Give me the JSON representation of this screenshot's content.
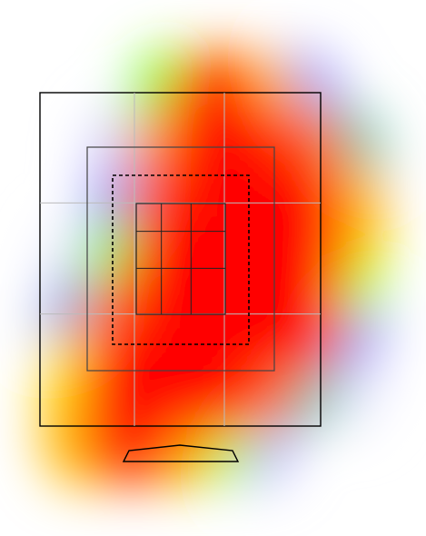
{
  "chart_data": {
    "type": "heatmap",
    "title": "",
    "xlabel": "",
    "ylabel": "",
    "grid": true,
    "legend": "none",
    "colors": {
      "scale": [
        "#ffffff",
        "#c4c4ff",
        "#9b9bff",
        "#40ff40",
        "#ffff00",
        "#ff7a00",
        "#ff0000"
      ],
      "outer_zone_line": "#000000",
      "strike_zone_line": "#000000",
      "grid_line": "#bbbbbb"
    },
    "x": [
      -1,
      -0.67,
      -0.33,
      0,
      0.33,
      0.67,
      1
    ],
    "y": [
      -1,
      -0.67,
      -0.33,
      0,
      0.33,
      0.67,
      1
    ],
    "z": [
      [
        0.0,
        0.0,
        0.55,
        0.95,
        0.75,
        0.3,
        0.0
      ],
      [
        0.0,
        0.1,
        0.8,
        1.0,
        0.95,
        0.85,
        0.4
      ],
      [
        0.0,
        0.3,
        0.9,
        1.0,
        1.0,
        1.0,
        0.75
      ],
      [
        0.05,
        0.55,
        1.0,
        1.0,
        1.0,
        1.0,
        0.6
      ],
      [
        0.35,
        0.85,
        1.0,
        1.0,
        1.0,
        0.95,
        0.3
      ],
      [
        0.7,
        1.0,
        1.0,
        1.0,
        0.85,
        0.4,
        0.05
      ],
      [
        0.75,
        0.95,
        0.8,
        0.6,
        0.2,
        0.0,
        0.0
      ]
    ]
  }
}
